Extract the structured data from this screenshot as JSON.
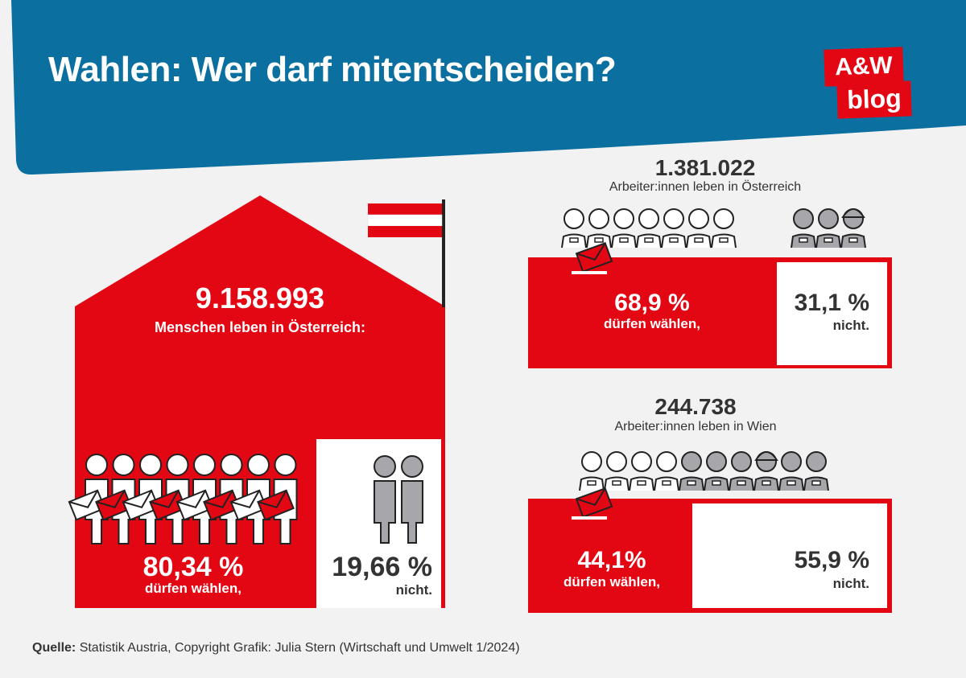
{
  "title": "Wahlen: Wer darf mitentscheiden?",
  "logo": {
    "line1": "A&W",
    "line2": "blog"
  },
  "colors": {
    "header": "#0b6fa0",
    "red": "#e30613",
    "grey": "#a7a7ab",
    "background": "#f2f2f2"
  },
  "chart_data": [
    {
      "type": "pie",
      "total_value": "9.158.993",
      "total_caption": "Menschen leben in Österreich:",
      "categories": [
        "dürfen wählen,",
        "nicht."
      ],
      "values": [
        80.34,
        19.66
      ],
      "value_labels": [
        "80,34 %",
        "19,66 %"
      ]
    },
    {
      "type": "pie",
      "total_value": "1.381.022",
      "total_caption": "Arbeiter:innen leben in Österreich",
      "categories": [
        "dürfen wählen,",
        "nicht."
      ],
      "values": [
        68.9,
        31.1
      ],
      "value_labels": [
        "68,9 %",
        "31,1 %"
      ]
    },
    {
      "type": "pie",
      "total_value": "244.738",
      "total_caption": "Arbeiter:innen leben in Wien",
      "categories": [
        "dürfen wählen,",
        "nicht."
      ],
      "values": [
        44.1,
        55.9
      ],
      "value_labels": [
        "44,1%",
        "55,9 %"
      ]
    }
  ],
  "source": {
    "label": "Quelle:",
    "text": "Statistik Austria, Copyright Grafik: Julia Stern (Wirtschaft und Umwelt 1/2024)"
  }
}
